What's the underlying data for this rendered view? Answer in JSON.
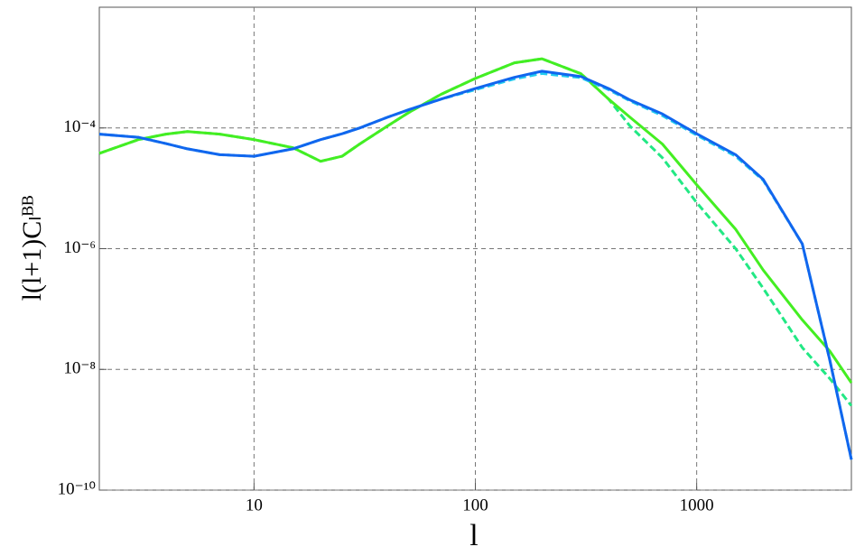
{
  "chart_data": {
    "type": "line",
    "xlabel": "l",
    "ylabel": "l(l+1)Cₗᴮᴮ",
    "x": [
      2,
      3,
      4,
      5,
      7,
      10,
      15,
      20,
      25,
      30,
      40,
      50,
      70,
      100,
      150,
      200,
      300,
      400,
      500,
      700,
      1000,
      1500,
      2000,
      3000,
      4000,
      5000
    ],
    "series": [
      {
        "color": "#22e884",
        "dashed": true,
        "values": [
          3.8e-05,
          6.4e-05,
          7.9e-05,
          8.7e-05,
          7.9e-05,
          6.4e-05,
          4.7e-05,
          2.8e-05,
          3.4e-05,
          5.4e-05,
          0.000107,
          0.00018,
          0.00036,
          0.00066,
          0.0012,
          0.0014,
          0.00079,
          0.0003,
          0.000107,
          3.2e-05,
          5.8e-06,
          1e-06,
          2.2e-07,
          2.3e-08,
          7e-09,
          2.5e-09
        ]
      },
      {
        "color": "#44ee22",
        "dashed": false,
        "values": [
          3.8e-05,
          6.4e-05,
          7.9e-05,
          8.7e-05,
          7.9e-05,
          6.4e-05,
          4.7e-05,
          2.8e-05,
          3.4e-05,
          5.4e-05,
          0.000107,
          0.00018,
          0.00036,
          0.00066,
          0.0012,
          0.0014,
          0.00079,
          0.0003,
          0.00015,
          5.4e-05,
          1.15e-05,
          2.1e-06,
          4.4e-07,
          6.6e-08,
          2e-08,
          6e-09
        ]
      },
      {
        "color": "#22ccee",
        "dashed": true,
        "values": [
          7.9e-05,
          7e-05,
          5.5e-05,
          4.5e-05,
          3.6e-05,
          3.4e-05,
          4.5e-05,
          6.4e-05,
          8e-05,
          0.0001,
          0.00015,
          0.0002,
          0.0003,
          0.00043,
          0.00065,
          0.0008,
          0.00068,
          0.00043,
          0.00028,
          0.00016,
          7.6e-05,
          3.4e-05,
          1.35e-05,
          1.2e-06,
          1.4e-08,
          3.2e-10
        ]
      },
      {
        "color": "#1166ee",
        "dashed": false,
        "values": [
          7.9e-05,
          7e-05,
          5.5e-05,
          4.5e-05,
          3.6e-05,
          3.4e-05,
          4.5e-05,
          6.4e-05,
          8e-05,
          0.0001,
          0.00015,
          0.0002,
          0.0003,
          0.00045,
          0.00069,
          0.00087,
          0.00071,
          0.00045,
          0.00029,
          0.00017,
          8e-05,
          3.6e-05,
          1.4e-05,
          1.2e-06,
          1.4e-08,
          3.2e-10
        ]
      }
    ],
    "log_x": true,
    "log_y": true,
    "xlim": [
      2,
      5000
    ],
    "ylim": [
      1e-10,
      0.01
    ],
    "xticks": [
      10,
      100,
      1000
    ],
    "yticks": [
      {
        "value": 1e-10,
        "label": "10⁻¹⁰"
      },
      {
        "value": 1e-08,
        "label": "10⁻⁸"
      },
      {
        "value": 1e-06,
        "label": "10⁻⁶"
      },
      {
        "value": 0.0001,
        "label": "10⁻⁴"
      }
    ],
    "grid": true
  }
}
